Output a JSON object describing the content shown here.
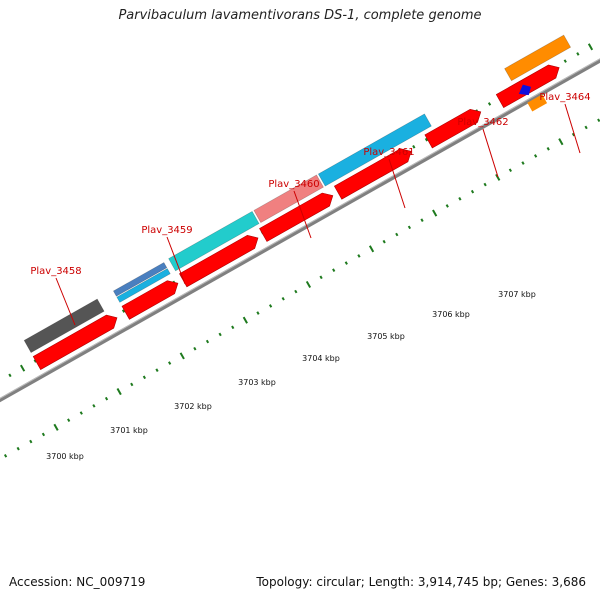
{
  "title": "Parvibaculum lavamentivorans DS-1, complete genome",
  "footer": {
    "accession": "Accession: NC_009719",
    "summary": "Topology: circular; Length: 3,914,745 bp; Genes: 3,686"
  },
  "ruler_labels": [
    "3700 kbp",
    "3701 kbp",
    "3702 kbp",
    "3703 kbp",
    "3704 kbp",
    "3705 kbp",
    "3706 kbp",
    "3707 kbp"
  ],
  "gene_labels": [
    "Plav_3458",
    "Plav_3459",
    "Plav_3460",
    "Plav_3461",
    "Plav_3462",
    "Plav_3464"
  ],
  "colors": {
    "cds": "#ff0000",
    "backbone": "#808080",
    "tick": "#1e7a1e",
    "label": "#cc0000",
    "gene_dark_grey": "#555555",
    "gene_steel_blue": "#4a7fbf",
    "gene_cyan": "#1ab0e0",
    "gene_teal": "#22cccc",
    "gene_pink": "#f08080",
    "gene_orange": "#ff8c00",
    "gene_blue": "#1010dd"
  }
}
